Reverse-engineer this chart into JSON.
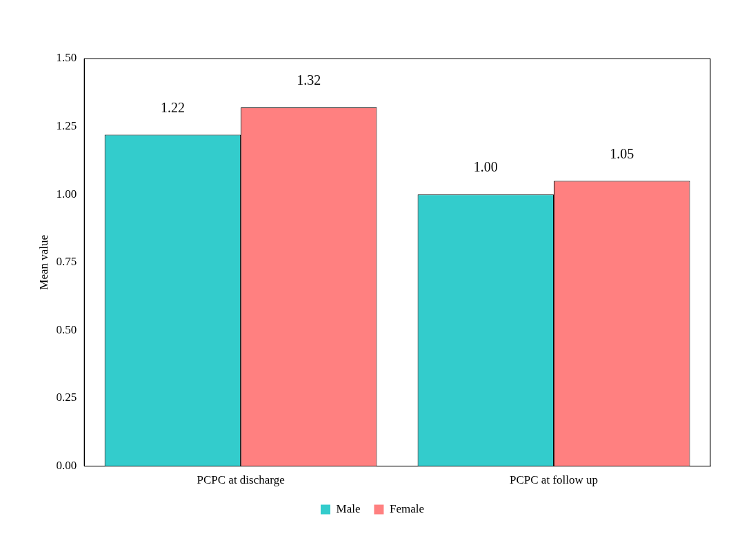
{
  "chart_data": {
    "type": "bar",
    "ylabel": "Mean value",
    "categories": [
      "PCPC at discharge",
      "PCPC at follow up"
    ],
    "series": [
      {
        "name": "Male",
        "color": "#33cccc",
        "values": [
          1.22,
          1.0
        ],
        "value_labels": [
          "1.22",
          "1.00"
        ]
      },
      {
        "name": "Female",
        "color": "#ff8080",
        "values": [
          1.32,
          1.05
        ],
        "value_labels": [
          "1.32",
          "1.05"
        ]
      }
    ],
    "ylim": [
      0,
      1.5
    ],
    "yticks": [
      {
        "value": 0,
        "label": "0.00"
      },
      {
        "value": 0.25,
        "label": "0.25"
      },
      {
        "value": 0.5,
        "label": "0.50"
      },
      {
        "value": 0.75,
        "label": "0.75"
      },
      {
        "value": 1,
        "label": "1.00"
      },
      {
        "value": 1.25,
        "label": "1.25"
      },
      {
        "value": 1.5,
        "label": "1.50"
      }
    ],
    "grid": false,
    "legend": "bottom"
  }
}
